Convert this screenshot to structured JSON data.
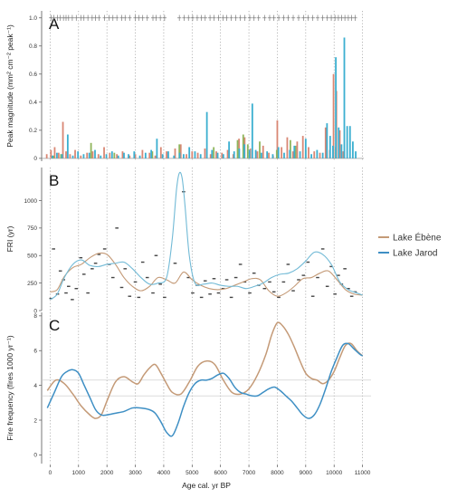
{
  "chart_data": {
    "type": "multi-panel",
    "xlabel": "Age cal. yr BP",
    "xlim": [
      -300,
      11300
    ],
    "x_ticks": [
      0,
      1000,
      2000,
      3000,
      4000,
      5000,
      6000,
      7000,
      8000,
      9000,
      10000,
      11000
    ],
    "grid_x": [
      0,
      1000,
      2000,
      3000,
      4000,
      5000,
      6000,
      7000,
      8000,
      9000,
      10000,
      11000
    ],
    "legend": {
      "placement": "right",
      "entries": [
        {
          "name": "Lake Ébène",
          "color": "#C49A77"
        },
        {
          "name": "Lake Jarod",
          "color": "#3E8FC4"
        }
      ]
    },
    "panels": [
      {
        "letter": "A",
        "type": "bar",
        "ylabel": "Peak magnitude (mm² cm⁻² peak⁻¹)",
        "ylim": [
          -0.02,
          1.05
        ],
        "y_ticks": [
          0,
          0.2,
          0.4,
          0.6,
          0.8,
          1.0
        ],
        "y_tick_labels": [
          "0",
          "0.2",
          "0.4",
          "0.6",
          "0.8",
          "1.0"
        ],
        "peak_events_row_y": 1.0,
        "peak_events": [
          30,
          130,
          260,
          360,
          470,
          560,
          650,
          780,
          920,
          1080,
          1190,
          1330,
          1480,
          1600,
          1720,
          1920,
          2080,
          2210,
          2350,
          2520,
          2640,
          2800,
          3000,
          3120,
          3260,
          3420,
          3620,
          3730,
          3880,
          4030,
          4550,
          4720,
          4870,
          5020,
          5180,
          5330,
          5460,
          5630,
          5770,
          5930,
          6090,
          6220,
          6380,
          6540,
          6700,
          6850,
          7030,
          7180,
          7340,
          7550,
          7730,
          7880,
          8050,
          8220,
          8380,
          8560,
          8750,
          8920,
          9080,
          9250,
          9420,
          9600,
          9760,
          9900,
          10030,
          10150,
          10260,
          10380,
          10500,
          10620,
          10740
        ],
        "series": [
          {
            "name": "Lake Ébène",
            "color": "#D98774",
            "x": [
              -120,
              30,
              160,
              300,
              450,
              560,
              700,
              880,
              1080,
              1300,
              1500,
              1700,
              1900,
              2100,
              2350,
              2550,
              2800,
              3000,
              3250,
              3500,
              3700,
              3900,
              4100,
              4400,
              4600,
              4800,
              5000,
              5200,
              5450,
              5650,
              5850,
              6050,
              6250,
              6450,
              6650,
              6850,
              7050,
              7300,
              7500,
              7700,
              7850,
              8000,
              8150,
              8350,
              8550,
              8700,
              8900,
              9100,
              9300,
              9500,
              9700,
              9850,
              9980,
              10080,
              10200,
              10320
            ],
            "values": [
              0.03,
              0.06,
              0.08,
              0.04,
              0.26,
              0.05,
              0.03,
              0.06,
              0.02,
              0.04,
              0.05,
              0.03,
              0.08,
              0.04,
              0.03,
              0.05,
              0.02,
              0.03,
              0.06,
              0.04,
              0.02,
              0.08,
              0.05,
              0.07,
              0.1,
              0.03,
              0.05,
              0.04,
              0.07,
              0.03,
              0.05,
              0.04,
              0.06,
              0.03,
              0.14,
              0.15,
              0.07,
              0.05,
              0.09,
              0.04,
              0.02,
              0.27,
              0.08,
              0.15,
              0.05,
              0.12,
              0.16,
              0.08,
              0.05,
              0.04,
              0.22,
              0.06,
              0.6,
              0.48,
              0.2,
              0.05
            ]
          },
          {
            "name": "",
            "color": "#8FB55B",
            "x": [
              120,
              380,
              1440,
              2260,
              3600,
              4550,
              5760,
              6600,
              6800,
              6960,
              7380,
              7980,
              8460,
              8640,
              9000,
              10060
            ],
            "values": [
              0.02,
              0.03,
              0.11,
              0.04,
              0.05,
              0.1,
              0.08,
              0.13,
              0.17,
              0.1,
              0.12,
              0.06,
              0.13,
              0.09,
              0.06,
              0.08
            ]
          },
          {
            "name": "Lake Jarod",
            "color": "#3BAFD0",
            "x": [
              80,
              240,
              420,
              620,
              800,
              980,
              1180,
              1380,
              1580,
              1780,
              1980,
              2180,
              2400,
              2600,
              2760,
              2960,
              3160,
              3360,
              3560,
              3760,
              3960,
              4160,
              4360,
              4560,
              4700,
              4900,
              5100,
              5300,
              5520,
              5700,
              5900,
              6100,
              6300,
              6480,
              6660,
              6840,
              7020,
              7120,
              7240,
              7440,
              7640,
              7840,
              8040,
              8240,
              8440,
              8600,
              8800,
              9000,
              9200,
              9400,
              9600,
              9750,
              9860,
              9960,
              10060,
              10160,
              10260,
              10360,
              10460,
              10560,
              10660,
              10760
            ],
            "values": [
              0.02,
              0.04,
              0.03,
              0.17,
              0.02,
              0.05,
              0.03,
              0.04,
              0.06,
              0.02,
              0.03,
              0.05,
              0.02,
              0.04,
              0.03,
              0.05,
              0.02,
              0.04,
              0.06,
              0.14,
              0.03,
              0.05,
              0.02,
              0.04,
              0.03,
              0.08,
              0.05,
              0.03,
              0.33,
              0.06,
              0.04,
              0.03,
              0.12,
              0.05,
              0.07,
              0.1,
              0.06,
              0.39,
              0.06,
              0.04,
              0.05,
              0.03,
              0.08,
              0.04,
              0.06,
              0.09,
              0.05,
              0.14,
              0.03,
              0.06,
              0.04,
              0.25,
              0.16,
              0.09,
              0.72,
              0.22,
              0.1,
              0.86,
              0.23,
              0.23,
              0.12,
              0.05
            ]
          }
        ]
      },
      {
        "letter": "B",
        "type": "line+scatter",
        "ylabel": "FRI (yr)",
        "ylim": [
          0,
          1300
        ],
        "y_ticks": [
          0,
          250,
          500,
          750,
          1000
        ],
        "y_tick_labels": [
          "0",
          "250",
          "500",
          "750",
          "1000"
        ],
        "series": [
          {
            "name": "Lake Ébène",
            "color": "#C49A77",
            "x": [
              0,
              250,
              500,
              800,
              1100,
              1400,
              1700,
              2000,
              2300,
              2600,
              2900,
              3200,
              3500,
              3800,
              4100,
              4400,
              4700,
              5000,
              5300,
              5600,
              5900,
              6200,
              6500,
              6800,
              7100,
              7400,
              7700,
              8000,
              8300,
              8600,
              8900,
              9200,
              9500,
              9800,
              10100,
              10400,
              10700,
              11000
            ],
            "values": [
              170,
              190,
              310,
              390,
              420,
              480,
              520,
              510,
              420,
              300,
              220,
              180,
              220,
              300,
              280,
              250,
              350,
              280,
              230,
              200,
              190,
              200,
              230,
              260,
              290,
              280,
              180,
              130,
              160,
              220,
              290,
              300,
              340,
              360,
              280,
              190,
              150,
              140
            ]
          },
          {
            "name": "Lake Jarod",
            "color": "#72BAD6",
            "x": [
              0,
              250,
              500,
              800,
              1100,
              1400,
              1700,
              2000,
              2300,
              2600,
              2900,
              3200,
              3500,
              3800,
              4100,
              4300,
              4450,
              4550,
              4650,
              4750,
              4900,
              5100,
              5400,
              5700,
              6000,
              6300,
              6600,
              6900,
              7200,
              7500,
              7800,
              8100,
              8400,
              8700,
              9000,
              9300,
              9600,
              9900,
              10200,
              10500,
              10800,
              11000
            ],
            "values": [
              100,
              150,
              300,
              420,
              460,
              410,
              400,
              420,
              430,
              440,
              380,
              300,
              240,
              250,
              300,
              650,
              1100,
              1250,
              1200,
              950,
              500,
              250,
              240,
              250,
              230,
              220,
              220,
              200,
              220,
              250,
              300,
              330,
              340,
              380,
              450,
              530,
              510,
              420,
              260,
              190,
              160,
              140
            ]
          }
        ],
        "scatter": [
          {
            "color": "#444444",
            "x": [
              30,
              120,
              260,
              360,
              470,
              560,
              650,
              780,
              920,
              1080,
              1190,
              1330,
              1480,
              1600,
              1720,
              1920,
              2080,
              2210,
              2350,
              2520,
              2640,
              2800,
              3000,
              3120,
              3260,
              3420,
              3620,
              3730,
              3880,
              4030,
              4400,
              4700,
              4870,
              5020,
              5180,
              5330,
              5460,
              5630,
              5770,
              5930,
              6090,
              6220,
              6380,
              6540,
              6700,
              6850,
              7030,
              7180,
              7340,
              7550,
              7730,
              7880,
              8050,
              8220,
              8380,
              8560,
              8750,
              8920,
              9080,
              9250,
              9420,
              9600,
              9760,
              9900,
              10030,
              10150,
              10260,
              10380,
              10500,
              10620,
              10740
            ],
            "values": [
              110,
              560,
              150,
              360,
              280,
              160,
              220,
              100,
              200,
              480,
              330,
              160,
              380,
              430,
              510,
              560,
              420,
              300,
              750,
              210,
              380,
              130,
              260,
              120,
              440,
              300,
              160,
              500,
              240,
              120,
              430,
              1080,
              300,
              160,
              230,
              120,
              270,
              150,
              290,
              160,
              200,
              280,
              120,
              300,
              420,
              260,
              160,
              340,
              230,
              200,
              260,
              170,
              120,
              260,
              420,
              180,
              280,
              320,
              440,
              130,
              300,
              560,
              220,
              400,
              150,
              320,
              240,
              380,
              200,
              130,
              170
            ]
          }
        ]
      },
      {
        "letter": "C",
        "type": "line",
        "ylabel": "Fire frequency (fires 1000 yr⁻¹)",
        "ylim": [
          -0.5,
          8.2
        ],
        "y_ticks": [
          0,
          2,
          4,
          6,
          8
        ],
        "y_tick_labels": [
          "0",
          "2",
          "4",
          "6",
          "8"
        ],
        "threshold_lines": [
          4.3,
          3.4
        ],
        "series": [
          {
            "name": "Lake Ébène",
            "color": "#C49A77",
            "x": [
              -100,
              200,
              500,
              800,
              1100,
              1400,
              1600,
              1800,
              2000,
              2300,
              2600,
              2900,
              3100,
              3300,
              3500,
              3700,
              3900,
              4100,
              4300,
              4600,
              4900,
              5200,
              5500,
              5800,
              6100,
              6400,
              6700,
              7000,
              7300,
              7600,
              7800,
              8000,
              8200,
              8400,
              8600,
              8800,
              9000,
              9200,
              9400,
              9600,
              9800,
              10000,
              10200,
              10400,
              10600,
              10800,
              11000
            ],
            "values": [
              3.7,
              4.3,
              4.1,
              3.5,
              2.8,
              2.3,
              2.1,
              2.3,
              3.1,
              4.2,
              4.5,
              4.2,
              4.1,
              4.6,
              5.0,
              5.2,
              4.7,
              4.1,
              3.6,
              3.5,
              4.2,
              5.1,
              5.4,
              5.2,
              4.3,
              3.6,
              3.5,
              3.8,
              4.6,
              5.8,
              6.9,
              7.6,
              7.4,
              6.9,
              6.2,
              5.4,
              4.7,
              4.4,
              4.3,
              4.1,
              4.3,
              4.8,
              5.6,
              6.3,
              6.4,
              6.0,
              5.7
            ]
          },
          {
            "name": "Lake Jarod",
            "color": "#3E8FC4",
            "x": [
              -100,
              150,
              400,
              600,
              800,
              1000,
              1200,
              1400,
              1600,
              1800,
              2000,
              2300,
              2600,
              2900,
              3200,
              3500,
              3700,
              3900,
              4100,
              4300,
              4500,
              4700,
              4900,
              5100,
              5300,
              5500,
              5700,
              5900,
              6100,
              6300,
              6500,
              6700,
              6900,
              7100,
              7300,
              7500,
              7700,
              7900,
              8100,
              8300,
              8500,
              8700,
              8900,
              9100,
              9300,
              9500,
              9700,
              9900,
              10100,
              10300,
              10500,
              10700,
              10900,
              11000
            ],
            "values": [
              2.7,
              3.6,
              4.5,
              4.8,
              4.9,
              4.7,
              4.0,
              3.3,
              2.6,
              2.3,
              2.3,
              2.4,
              2.5,
              2.7,
              2.7,
              2.6,
              2.4,
              1.9,
              1.3,
              1.1,
              1.8,
              2.8,
              3.6,
              4.1,
              4.3,
              4.3,
              4.4,
              4.6,
              4.7,
              4.4,
              3.9,
              3.6,
              3.5,
              3.4,
              3.4,
              3.6,
              3.8,
              3.9,
              3.7,
              3.4,
              3.1,
              2.7,
              2.3,
              2.1,
              2.3,
              2.9,
              3.8,
              4.8,
              5.6,
              6.3,
              6.4,
              6.1,
              5.8,
              5.7
            ]
          }
        ]
      }
    ]
  }
}
